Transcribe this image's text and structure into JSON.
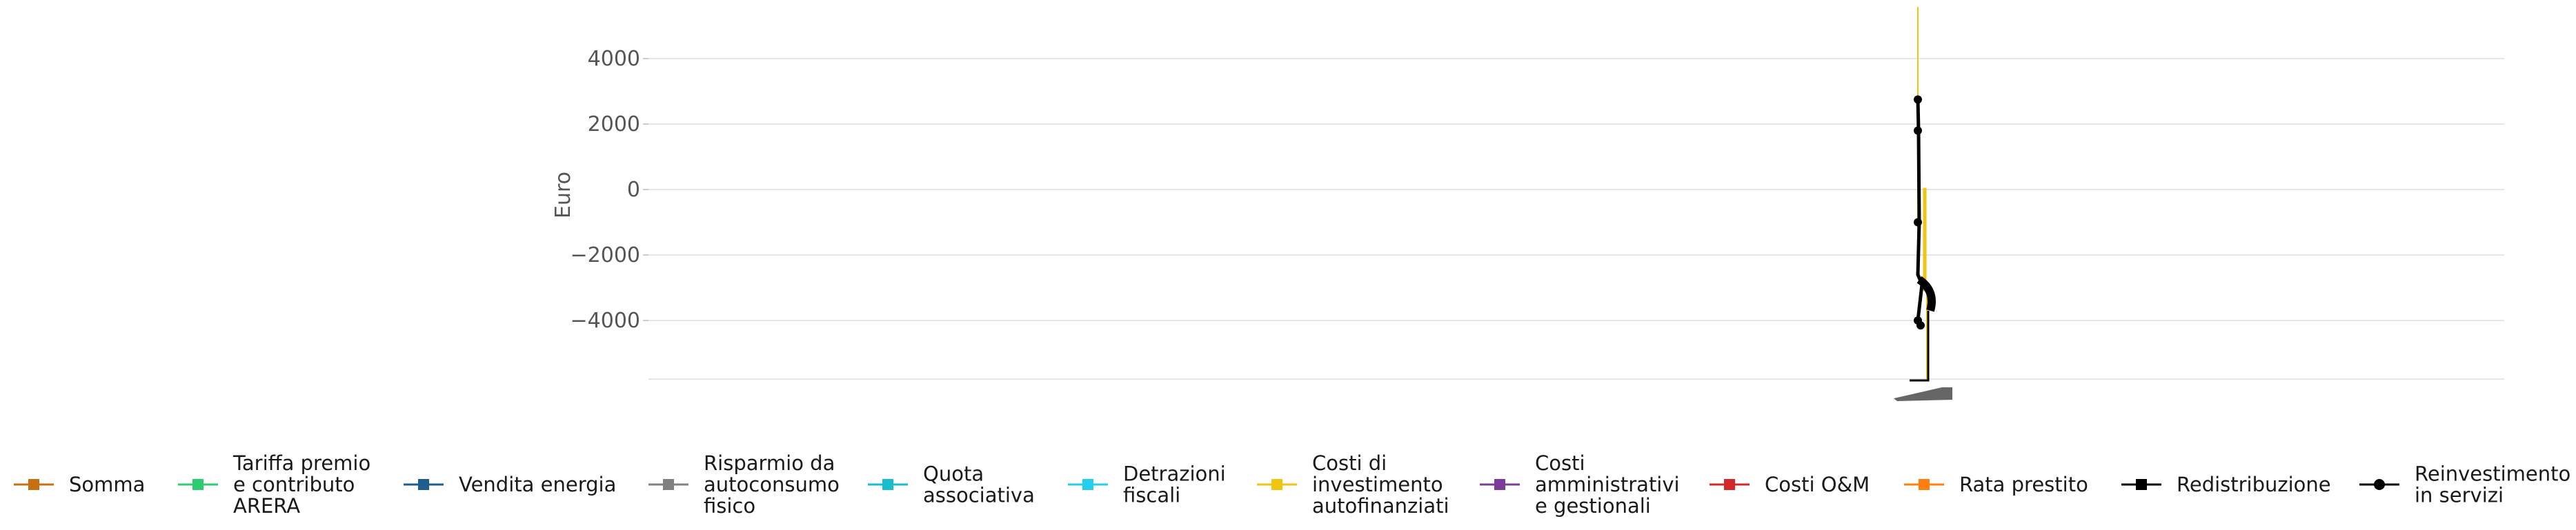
{
  "chart_data": {
    "type": "line",
    "title": "",
    "xlabel": "",
    "ylabel": "Euro",
    "ylim": [
      -5900,
      5500
    ],
    "y_ticks": [
      4000,
      2000,
      0,
      -2000,
      -4000
    ],
    "y_tick_labels": [
      "4000",
      "2000",
      "0",
      "−2000",
      "−4000"
    ],
    "grid": true,
    "legend_position": "bottom",
    "series": [
      {
        "name": "Somma",
        "color": "#c8700f",
        "marker": "square"
      },
      {
        "name": "Tariffa premio e contributo ARERA",
        "color": "#2ecc71",
        "marker": "square"
      },
      {
        "name": "Vendita energia",
        "color": "#1f5e8c",
        "marker": "square"
      },
      {
        "name": "Risparmio da autoconsumo fisico",
        "color": "#808080",
        "marker": "square"
      },
      {
        "name": "Quota associativa",
        "color": "#17becf",
        "marker": "square"
      },
      {
        "name": "Detrazioni fiscali",
        "color": "#22d0ee",
        "marker": "square"
      },
      {
        "name": "Costi di investimento autofinanziati",
        "color": "#f1c40f",
        "marker": "square"
      },
      {
        "name": "Costi amministrativi e gestionali",
        "color": "#7d3c98",
        "marker": "square"
      },
      {
        "name": "Costi O&M",
        "color": "#d62728",
        "marker": "square"
      },
      {
        "name": "Rata prestito",
        "color": "#ff7f0e",
        "marker": "square"
      },
      {
        "name": "Redistribuzione",
        "color": "#000000",
        "marker": "square"
      },
      {
        "name": "Reinvestimento in servizi",
        "color": "#000000",
        "marker": "circle"
      }
    ],
    "points": [
      {
        "series": "Reinvestimento in servizi",
        "y": 2750
      },
      {
        "series": "Reinvestimento in servizi",
        "y": 1800
      },
      {
        "series": "Reinvestimento in servizi",
        "y": -1000
      },
      {
        "series": "Reinvestimento in servizi",
        "y": -4000
      },
      {
        "series": "Reinvestimento in servizi",
        "y": -4150
      }
    ]
  },
  "legend_lines": [
    [
      "Somma"
    ],
    [
      "Tariffa premio",
      "e contributo",
      "ARERA"
    ],
    [
      "Vendita energia"
    ],
    [
      "Risparmio da",
      "autoconsumo",
      "fisico"
    ],
    [
      "Quota",
      "associativa"
    ],
    [
      "Detrazioni",
      "fiscali"
    ],
    [
      "Costi di",
      "investimento",
      "autofinanziati"
    ],
    [
      "Costi",
      "amministrativi",
      "e gestionali"
    ],
    [
      "Costi O&M"
    ],
    [
      "Rata prestito"
    ],
    [
      "Redistribuzione"
    ],
    [
      "Reinvestimento",
      "in servizi"
    ]
  ]
}
